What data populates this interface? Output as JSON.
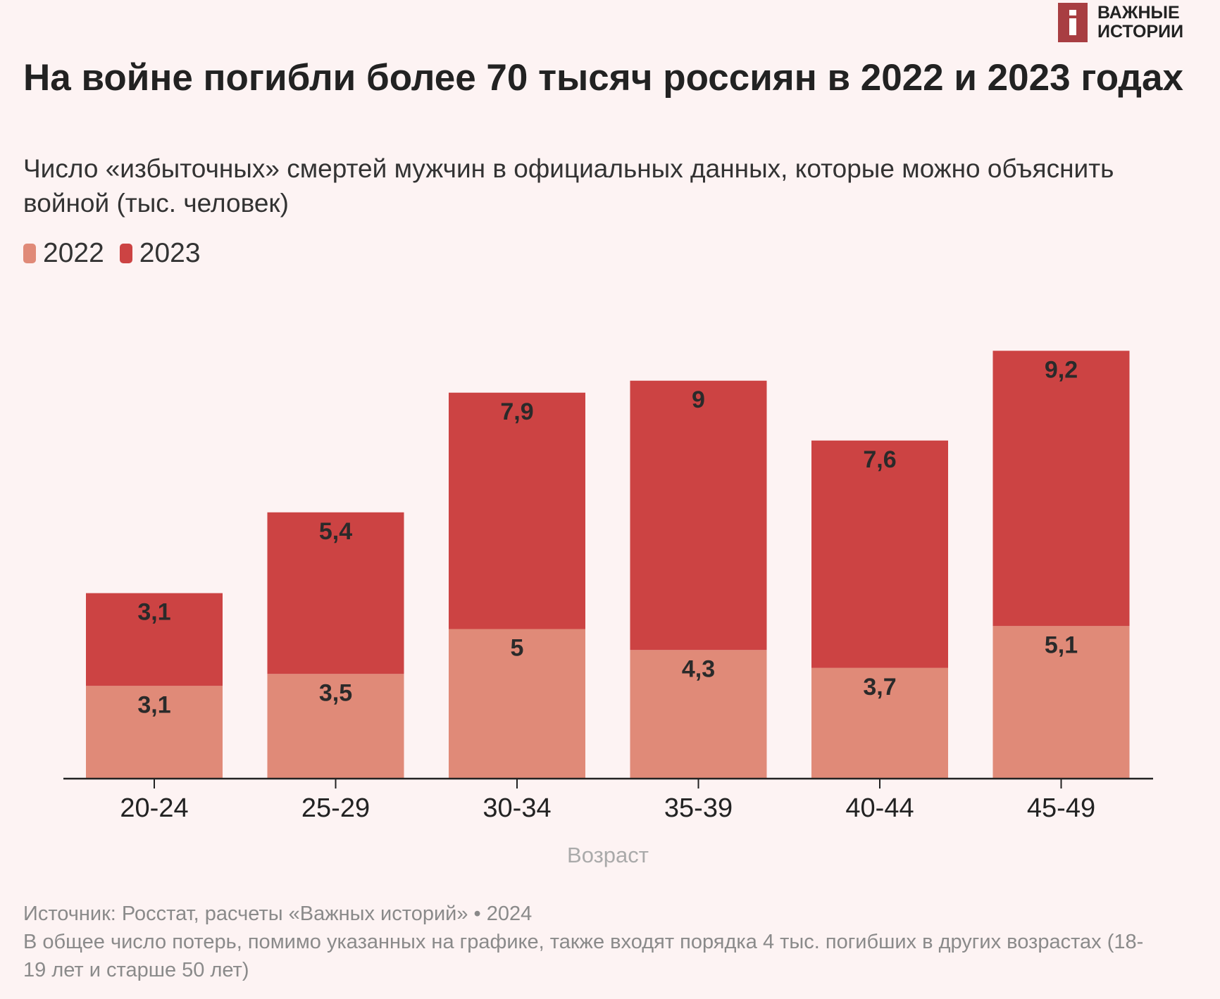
{
  "logo": {
    "line1": "ВАЖНЫЕ",
    "line2": "ИСТОРИИ"
  },
  "chart_data": {
    "type": "bar",
    "stacked": true,
    "title": "На войне погибли более 70 тысяч россиян в 2022 и 2023 годах",
    "subtitle": "Число «избыточных» смертей мужчин в официальных данных, которые можно объяснить войной (тыс. человек)",
    "xlabel": "Возраст",
    "ylabel": "",
    "categories": [
      "20-24",
      "25-29",
      "30-34",
      "35-39",
      "40-44",
      "45-49"
    ],
    "series": [
      {
        "name": "2022",
        "color": "#e08a78",
        "values": [
          3.1,
          3.5,
          5,
          4.3,
          3.7,
          5.1
        ],
        "labels": [
          "3,1",
          "3,5",
          "5",
          "4,3",
          "3,7",
          "5,1"
        ]
      },
      {
        "name": "2023",
        "color": "#cc4343",
        "values": [
          3.1,
          5.4,
          7.9,
          9,
          7.6,
          9.2
        ],
        "labels": [
          "3,1",
          "5,4",
          "7,9",
          "9",
          "7,6",
          "9,2"
        ]
      }
    ],
    "ylim": [
      0,
      14.3
    ],
    "grid": false,
    "legend_position": "top-left"
  },
  "footer": {
    "source": "Источник: Росстат, расчеты «Важных историй» • 2024",
    "note": "В общее число потерь, помимо указанных на графике, также входят порядка 4 тыс. погибших в других возрастах (18-19 лет и старше 50 лет)"
  }
}
